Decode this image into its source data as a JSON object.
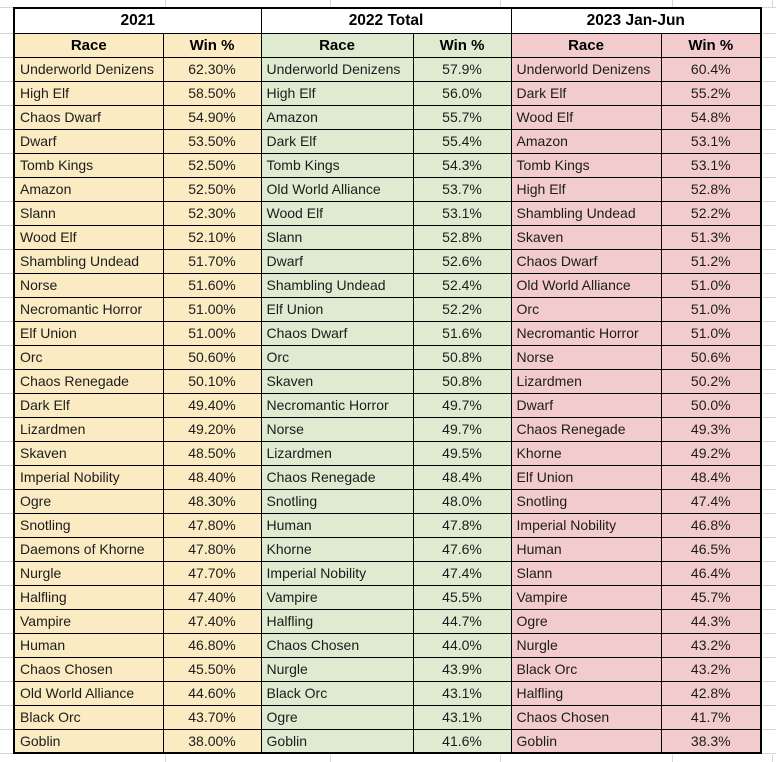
{
  "sheet": {
    "sections": [
      {
        "id": "2021",
        "title": "2021",
        "race_header": "Race",
        "win_header": "Win %",
        "fill": "#FAEBC2",
        "rows": [
          {
            "race": "Underworld Denizens",
            "win": "62.30%"
          },
          {
            "race": "High Elf",
            "win": "58.50%"
          },
          {
            "race": "Chaos Dwarf",
            "win": "54.90%"
          },
          {
            "race": "Dwarf",
            "win": "53.50%"
          },
          {
            "race": "Tomb Kings",
            "win": "52.50%"
          },
          {
            "race": "Amazon",
            "win": "52.50%"
          },
          {
            "race": "Slann",
            "win": "52.30%"
          },
          {
            "race": "Wood Elf",
            "win": "52.10%"
          },
          {
            "race": "Shambling Undead",
            "win": "51.70%"
          },
          {
            "race": "Norse",
            "win": "51.60%"
          },
          {
            "race": "Necromantic Horror",
            "win": "51.00%"
          },
          {
            "race": "Elf Union",
            "win": "51.00%"
          },
          {
            "race": "Orc",
            "win": "50.60%"
          },
          {
            "race": "Chaos Renegade",
            "win": "50.10%"
          },
          {
            "race": "Dark Elf",
            "win": "49.40%"
          },
          {
            "race": "Lizardmen",
            "win": "49.20%"
          },
          {
            "race": "Skaven",
            "win": "48.50%"
          },
          {
            "race": "Imperial Nobility",
            "win": "48.40%"
          },
          {
            "race": "Ogre",
            "win": "48.30%"
          },
          {
            "race": "Snotling",
            "win": "47.80%"
          },
          {
            "race": "Daemons of Khorne",
            "win": "47.80%"
          },
          {
            "race": "Nurgle",
            "win": "47.70%"
          },
          {
            "race": "Halfling",
            "win": "47.40%"
          },
          {
            "race": "Vampire",
            "win": "47.40%"
          },
          {
            "race": "Human",
            "win": "46.80%"
          },
          {
            "race": "Chaos Chosen",
            "win": "45.50%"
          },
          {
            "race": "Old World Alliance",
            "win": "44.60%"
          },
          {
            "race": "Black Orc",
            "win": "43.70%"
          },
          {
            "race": "Goblin",
            "win": "38.00%"
          }
        ]
      },
      {
        "id": "2022",
        "title": "2022 Total",
        "race_header": "Race",
        "win_header": "Win %",
        "fill": "#DEEBD1",
        "rows": [
          {
            "race": "Underworld Denizens",
            "win": "57.9%"
          },
          {
            "race": "High Elf",
            "win": "56.0%"
          },
          {
            "race": "Amazon",
            "win": "55.7%"
          },
          {
            "race": "Dark Elf",
            "win": "55.4%"
          },
          {
            "race": "Tomb Kings",
            "win": "54.3%"
          },
          {
            "race": "Old World Alliance",
            "win": "53.7%"
          },
          {
            "race": "Wood Elf",
            "win": "53.1%"
          },
          {
            "race": "Slann",
            "win": "52.8%"
          },
          {
            "race": "Dwarf",
            "win": "52.6%"
          },
          {
            "race": "Shambling Undead",
            "win": "52.4%"
          },
          {
            "race": "Elf Union",
            "win": "52.2%"
          },
          {
            "race": "Chaos Dwarf",
            "win": "51.6%"
          },
          {
            "race": "Orc",
            "win": "50.8%"
          },
          {
            "race": "Skaven",
            "win": "50.8%"
          },
          {
            "race": "Necromantic Horror",
            "win": "49.7%"
          },
          {
            "race": "Norse",
            "win": "49.7%"
          },
          {
            "race": "Lizardmen",
            "win": "49.5%"
          },
          {
            "race": "Chaos Renegade",
            "win": "48.4%"
          },
          {
            "race": "Snotling",
            "win": "48.0%"
          },
          {
            "race": "Human",
            "win": "47.8%"
          },
          {
            "race": "Khorne",
            "win": "47.6%"
          },
          {
            "race": "Imperial Nobility",
            "win": "47.4%"
          },
          {
            "race": "Vampire",
            "win": "45.5%"
          },
          {
            "race": "Halfling",
            "win": "44.7%"
          },
          {
            "race": "Chaos Chosen",
            "win": "44.0%"
          },
          {
            "race": "Nurgle",
            "win": "43.9%"
          },
          {
            "race": "Black Orc",
            "win": "43.1%"
          },
          {
            "race": "Ogre",
            "win": "43.1%"
          },
          {
            "race": "Goblin",
            "win": "41.6%"
          }
        ]
      },
      {
        "id": "2023",
        "title": "2023 Jan-Jun",
        "race_header": "Race",
        "win_header": "Win %",
        "fill": "#F2CCCC",
        "rows": [
          {
            "race": "Underworld Denizens",
            "win": "60.4%"
          },
          {
            "race": "Dark Elf",
            "win": "55.2%"
          },
          {
            "race": "Wood Elf",
            "win": "54.8%"
          },
          {
            "race": "Amazon",
            "win": "53.1%"
          },
          {
            "race": "Tomb Kings",
            "win": "53.1%"
          },
          {
            "race": "High Elf",
            "win": "52.8%"
          },
          {
            "race": "Shambling Undead",
            "win": "52.2%"
          },
          {
            "race": "Skaven",
            "win": "51.3%"
          },
          {
            "race": "Chaos Dwarf",
            "win": "51.2%"
          },
          {
            "race": "Old World Alliance",
            "win": "51.0%"
          },
          {
            "race": "Orc",
            "win": "51.0%"
          },
          {
            "race": "Necromantic Horror",
            "win": "51.0%"
          },
          {
            "race": "Norse",
            "win": "50.6%"
          },
          {
            "race": "Lizardmen",
            "win": "50.2%"
          },
          {
            "race": "Dwarf",
            "win": "50.0%"
          },
          {
            "race": "Chaos Renegade",
            "win": "49.3%"
          },
          {
            "race": "Khorne",
            "win": "49.2%"
          },
          {
            "race": "Elf Union",
            "win": "48.4%"
          },
          {
            "race": "Snotling",
            "win": "47.4%"
          },
          {
            "race": "Imperial Nobility",
            "win": "46.8%"
          },
          {
            "race": "Human",
            "win": "46.5%"
          },
          {
            "race": "Slann",
            "win": "46.4%"
          },
          {
            "race": "Vampire",
            "win": "45.7%"
          },
          {
            "race": "Ogre",
            "win": "44.3%"
          },
          {
            "race": "Nurgle",
            "win": "43.2%"
          },
          {
            "race": "Black Orc",
            "win": "43.2%"
          },
          {
            "race": "Halfling",
            "win": "42.8%"
          },
          {
            "race": "Chaos Chosen",
            "win": "41.7%"
          },
          {
            "race": "Goblin",
            "win": "38.3%"
          }
        ]
      }
    ],
    "gridline_color": "#d6d6d6"
  }
}
